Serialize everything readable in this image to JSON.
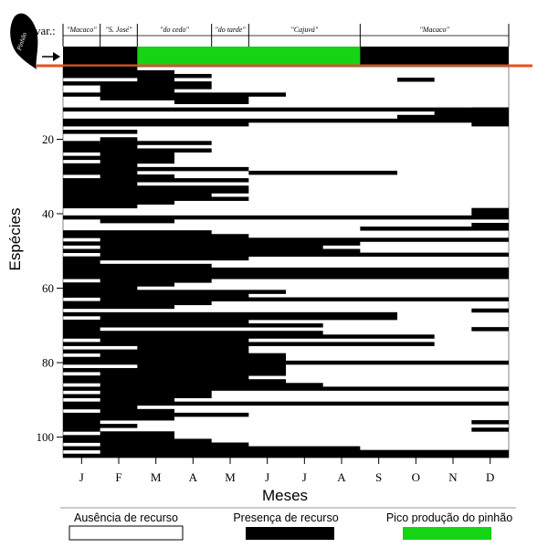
{
  "chart_data": {
    "type": "heatmap",
    "title": "",
    "xlabel": "Meses",
    "ylabel": "Espécies",
    "x_categories": [
      "J",
      "F",
      "M",
      "A",
      "M",
      "J",
      "J",
      "A",
      "S",
      "O",
      "N",
      "D"
    ],
    "y_ticks": [
      20,
      40,
      60,
      80,
      100
    ],
    "ylim": [
      1,
      105
    ],
    "varieties_label": "var.:",
    "pine_label": "Pinhão",
    "varieties": [
      {
        "name": "\"Macaco\"",
        "start": 0,
        "end": 1
      },
      {
        "name": "\"S. José\"",
        "start": 1,
        "end": 2
      },
      {
        "name": "\"do cedo\"",
        "start": 2,
        "end": 4
      },
      {
        "name": "\"do tarde\"",
        "start": 4,
        "end": 5
      },
      {
        "name": "\"Cajuvá\"",
        "start": 5,
        "end": 8
      },
      {
        "name": "\"Macaco\"",
        "start": 8,
        "end": 12
      }
    ],
    "pinhao_peak": {
      "start": 2,
      "end": 8
    },
    "legend": [
      {
        "label": "Ausência de recurso",
        "style": "empty"
      },
      {
        "label": "Presença de recurso",
        "style": "black"
      },
      {
        "label": "Pico produção do pinhão",
        "style": "green"
      }
    ],
    "colors": {
      "presence": "#000000",
      "absence": "#ffffff",
      "peak": "#14d414",
      "divider": "#e8501c"
    },
    "rows": [
      [
        1,
        0,
        2
      ],
      [
        2,
        0,
        3
      ],
      [
        3,
        0,
        4
      ],
      [
        4,
        2,
        3
      ],
      [
        4,
        9,
        10
      ],
      [
        5,
        0,
        4
      ],
      [
        6,
        1,
        4
      ],
      [
        7,
        1,
        3
      ],
      [
        8,
        0,
        6
      ],
      [
        9,
        1,
        5
      ],
      [
        10,
        3,
        5
      ],
      [
        12,
        0,
        12
      ],
      [
        12,
        11,
        12
      ],
      [
        13,
        10,
        12
      ],
      [
        14,
        9,
        12
      ],
      [
        15,
        0,
        12
      ],
      [
        16,
        0,
        5
      ],
      [
        16,
        11,
        12
      ],
      [
        18,
        0,
        2
      ],
      [
        20,
        1,
        2
      ],
      [
        21,
        0,
        1
      ],
      [
        21,
        1,
        4
      ],
      [
        22,
        0,
        2
      ],
      [
        23,
        0,
        4
      ],
      [
        24,
        1,
        3
      ],
      [
        25,
        0,
        3
      ],
      [
        26,
        1,
        3
      ],
      [
        27,
        0,
        2
      ],
      [
        28,
        0,
        5
      ],
      [
        29,
        0,
        2
      ],
      [
        29,
        5,
        9
      ],
      [
        30,
        1,
        3
      ],
      [
        31,
        0,
        5
      ],
      [
        32,
        0,
        2
      ],
      [
        33,
        0,
        5
      ],
      [
        34,
        0,
        5
      ],
      [
        35,
        0,
        4
      ],
      [
        36,
        0,
        5
      ],
      [
        37,
        0,
        3
      ],
      [
        38,
        0,
        2
      ],
      [
        39,
        11,
        12
      ],
      [
        40,
        11,
        12
      ],
      [
        41,
        0,
        12
      ],
      [
        42,
        1,
        3
      ],
      [
        43,
        11,
        12
      ],
      [
        44,
        8,
        12
      ],
      [
        45,
        0,
        4
      ],
      [
        46,
        0,
        5
      ],
      [
        47,
        1,
        12
      ],
      [
        48,
        0,
        8
      ],
      [
        49,
        1,
        7
      ],
      [
        50,
        0,
        8
      ],
      [
        51,
        1,
        12
      ],
      [
        52,
        0,
        5
      ],
      [
        53,
        0,
        1
      ],
      [
        54,
        0,
        4
      ],
      [
        55,
        0,
        12
      ],
      [
        56,
        0,
        12
      ],
      [
        57,
        0,
        12
      ],
      [
        58,
        1,
        4
      ],
      [
        59,
        0,
        3
      ],
      [
        60,
        0,
        2
      ],
      [
        61,
        0,
        6
      ],
      [
        62,
        0,
        5
      ],
      [
        63,
        1,
        12
      ],
      [
        64,
        0,
        4
      ],
      [
        65,
        0,
        3
      ],
      [
        66,
        11,
        12
      ],
      [
        67,
        0,
        9
      ],
      [
        68,
        1,
        9
      ],
      [
        69,
        0,
        5
      ],
      [
        70,
        0,
        7
      ],
      [
        71,
        0,
        1
      ],
      [
        71,
        11,
        12
      ],
      [
        72,
        0,
        7
      ],
      [
        73,
        0,
        10
      ],
      [
        74,
        1,
        5
      ],
      [
        75,
        0,
        10
      ],
      [
        76,
        2,
        5
      ],
      [
        77,
        0,
        5
      ],
      [
        78,
        1,
        6
      ],
      [
        79,
        0,
        6
      ],
      [
        80,
        0,
        12
      ],
      [
        81,
        2,
        6
      ],
      [
        82,
        0,
        6
      ],
      [
        83,
        1,
        6
      ],
      [
        84,
        0,
        5
      ],
      [
        85,
        0,
        6
      ],
      [
        86,
        1,
        7
      ],
      [
        87,
        0,
        12
      ],
      [
        88,
        1,
        4
      ],
      [
        89,
        0,
        4
      ],
      [
        90,
        1,
        3
      ],
      [
        91,
        0,
        12
      ],
      [
        92,
        0,
        2
      ],
      [
        93,
        1,
        3
      ],
      [
        94,
        0,
        5
      ],
      [
        95,
        0,
        3
      ],
      [
        96,
        0,
        1
      ],
      [
        96,
        11,
        12
      ],
      [
        97,
        0,
        2
      ],
      [
        98,
        0,
        1
      ],
      [
        98,
        11,
        12
      ],
      [
        99,
        1,
        3
      ],
      [
        100,
        0,
        3
      ],
      [
        101,
        0,
        4
      ],
      [
        102,
        1,
        5
      ],
      [
        103,
        0,
        8
      ],
      [
        104,
        1,
        12
      ],
      [
        105,
        0,
        12
      ]
    ]
  }
}
